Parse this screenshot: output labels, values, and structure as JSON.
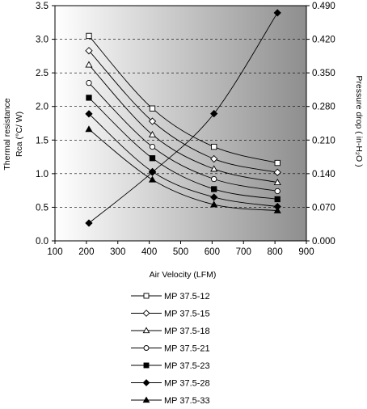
{
  "chart_data": {
    "type": "line",
    "title": "",
    "xlabel": "Air Velocity (LFM)",
    "ylabel_lines": [
      "Thermal resistance",
      "Rca (°C/ W)"
    ],
    "y2label": "Pressure drop  ( in-H₂O )",
    "xlim": [
      100,
      900
    ],
    "ylim": [
      0,
      3.5
    ],
    "y2lim": [
      0,
      0.49
    ],
    "xticks": [
      "100",
      "200",
      "300",
      "400",
      "500",
      "600",
      "700",
      "800",
      "900"
    ],
    "yticks": [
      "0.0",
      "0.5",
      "1.0",
      "1.5",
      "2.0",
      "2.5",
      "3.0",
      "3.5"
    ],
    "y2ticks": [
      "0.000",
      "0.070",
      "0.140",
      "0.210",
      "0.280",
      "0.350",
      "0.420",
      "0.490"
    ],
    "grid": "dashed, y-axis major ticks",
    "background": "gradient white-to-grey",
    "legend_position": "below plot",
    "series": [
      {
        "name": "MP 37.5-12",
        "marker": "open-square",
        "x": [
          208,
          410,
          606,
          808
        ],
        "y": [
          3.05,
          1.97,
          1.4,
          1.16
        ]
      },
      {
        "name": "MP 37.5-15",
        "marker": "open-diamond",
        "x": [
          208,
          410,
          606,
          808
        ],
        "y": [
          2.83,
          1.78,
          1.22,
          1.02
        ]
      },
      {
        "name": "MP 37.5-18",
        "marker": "open-triangle",
        "x": [
          208,
          410,
          606,
          808
        ],
        "y": [
          2.62,
          1.58,
          1.07,
          0.87
        ]
      },
      {
        "name": "MP 37.5-21",
        "marker": "open-circle",
        "x": [
          208,
          410,
          606,
          808
        ],
        "y": [
          2.35,
          1.4,
          0.92,
          0.74
        ]
      },
      {
        "name": "MP 37.5-23",
        "marker": "filled-square",
        "x": [
          208,
          410,
          606,
          808
        ],
        "y": [
          2.13,
          1.23,
          0.77,
          0.62
        ]
      },
      {
        "name": "MP 37.5-28",
        "marker": "filled-diamond",
        "x": [
          208,
          410,
          606,
          808
        ],
        "y": [
          1.89,
          1.03,
          0.65,
          0.51
        ]
      },
      {
        "name": "MP 37.5-33",
        "marker": "filled-triangle",
        "x": [
          208,
          410,
          606,
          808
        ],
        "y": [
          1.66,
          0.91,
          0.54,
          0.45
        ]
      },
      {
        "marker": "filled-diamond",
        "axis": "right",
        "x": [
          208,
          410,
          606,
          808
        ],
        "y": [
          0.037,
          0.143,
          0.265,
          0.475
        ]
      }
    ]
  }
}
